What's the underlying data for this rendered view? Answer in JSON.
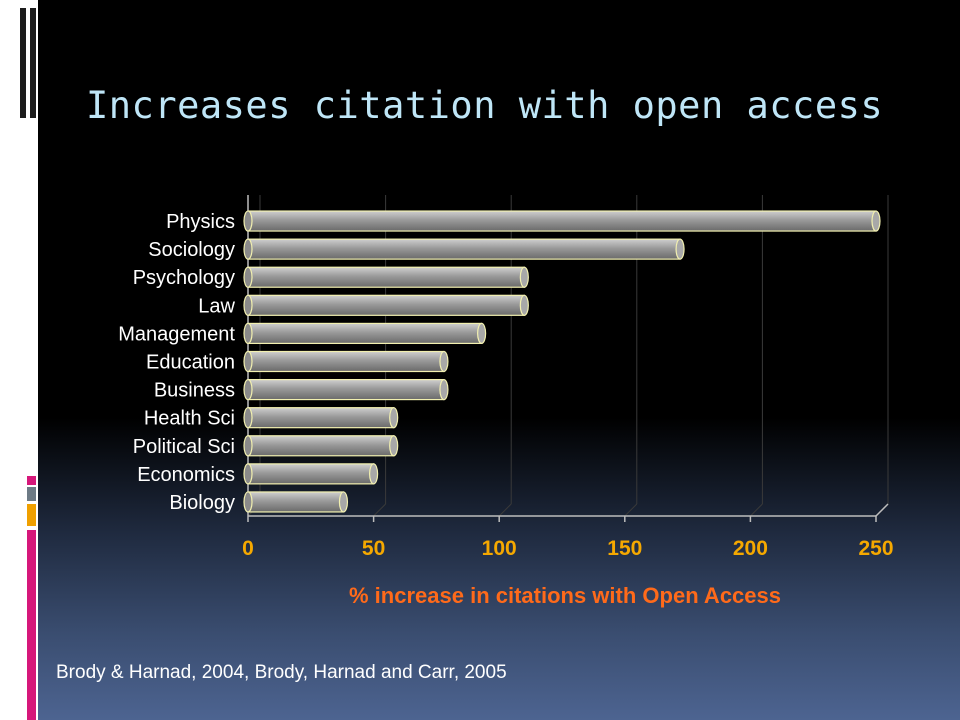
{
  "slide": {
    "title": "Increases citation with open access",
    "citation": "Brody & Harnad, 2004, Brody, Harnad and Carr, 2005"
  },
  "colors": {
    "title": "#bfe6f7",
    "tick_labels": "#f5a800",
    "axis_title": "#ff6a1a",
    "bar_fill": "#9a9a9a",
    "bar_outline": "#f2f0b0"
  },
  "chart_data": {
    "type": "bar",
    "orientation": "horizontal",
    "categories": [
      "Physics",
      "Sociology",
      "Psychology",
      "Law",
      "Management",
      "Education",
      "Business",
      "Health Sci",
      "Political Sci",
      "Economics",
      "Biology"
    ],
    "values": [
      250,
      172,
      110,
      110,
      93,
      78,
      78,
      58,
      58,
      50,
      38
    ],
    "xlabel": "% increase in citations with Open Access",
    "ylabel": "",
    "xlim": [
      0,
      250
    ],
    "xticks": [
      "0",
      "50",
      "100",
      "150",
      "200",
      "250"
    ],
    "grid": true
  }
}
